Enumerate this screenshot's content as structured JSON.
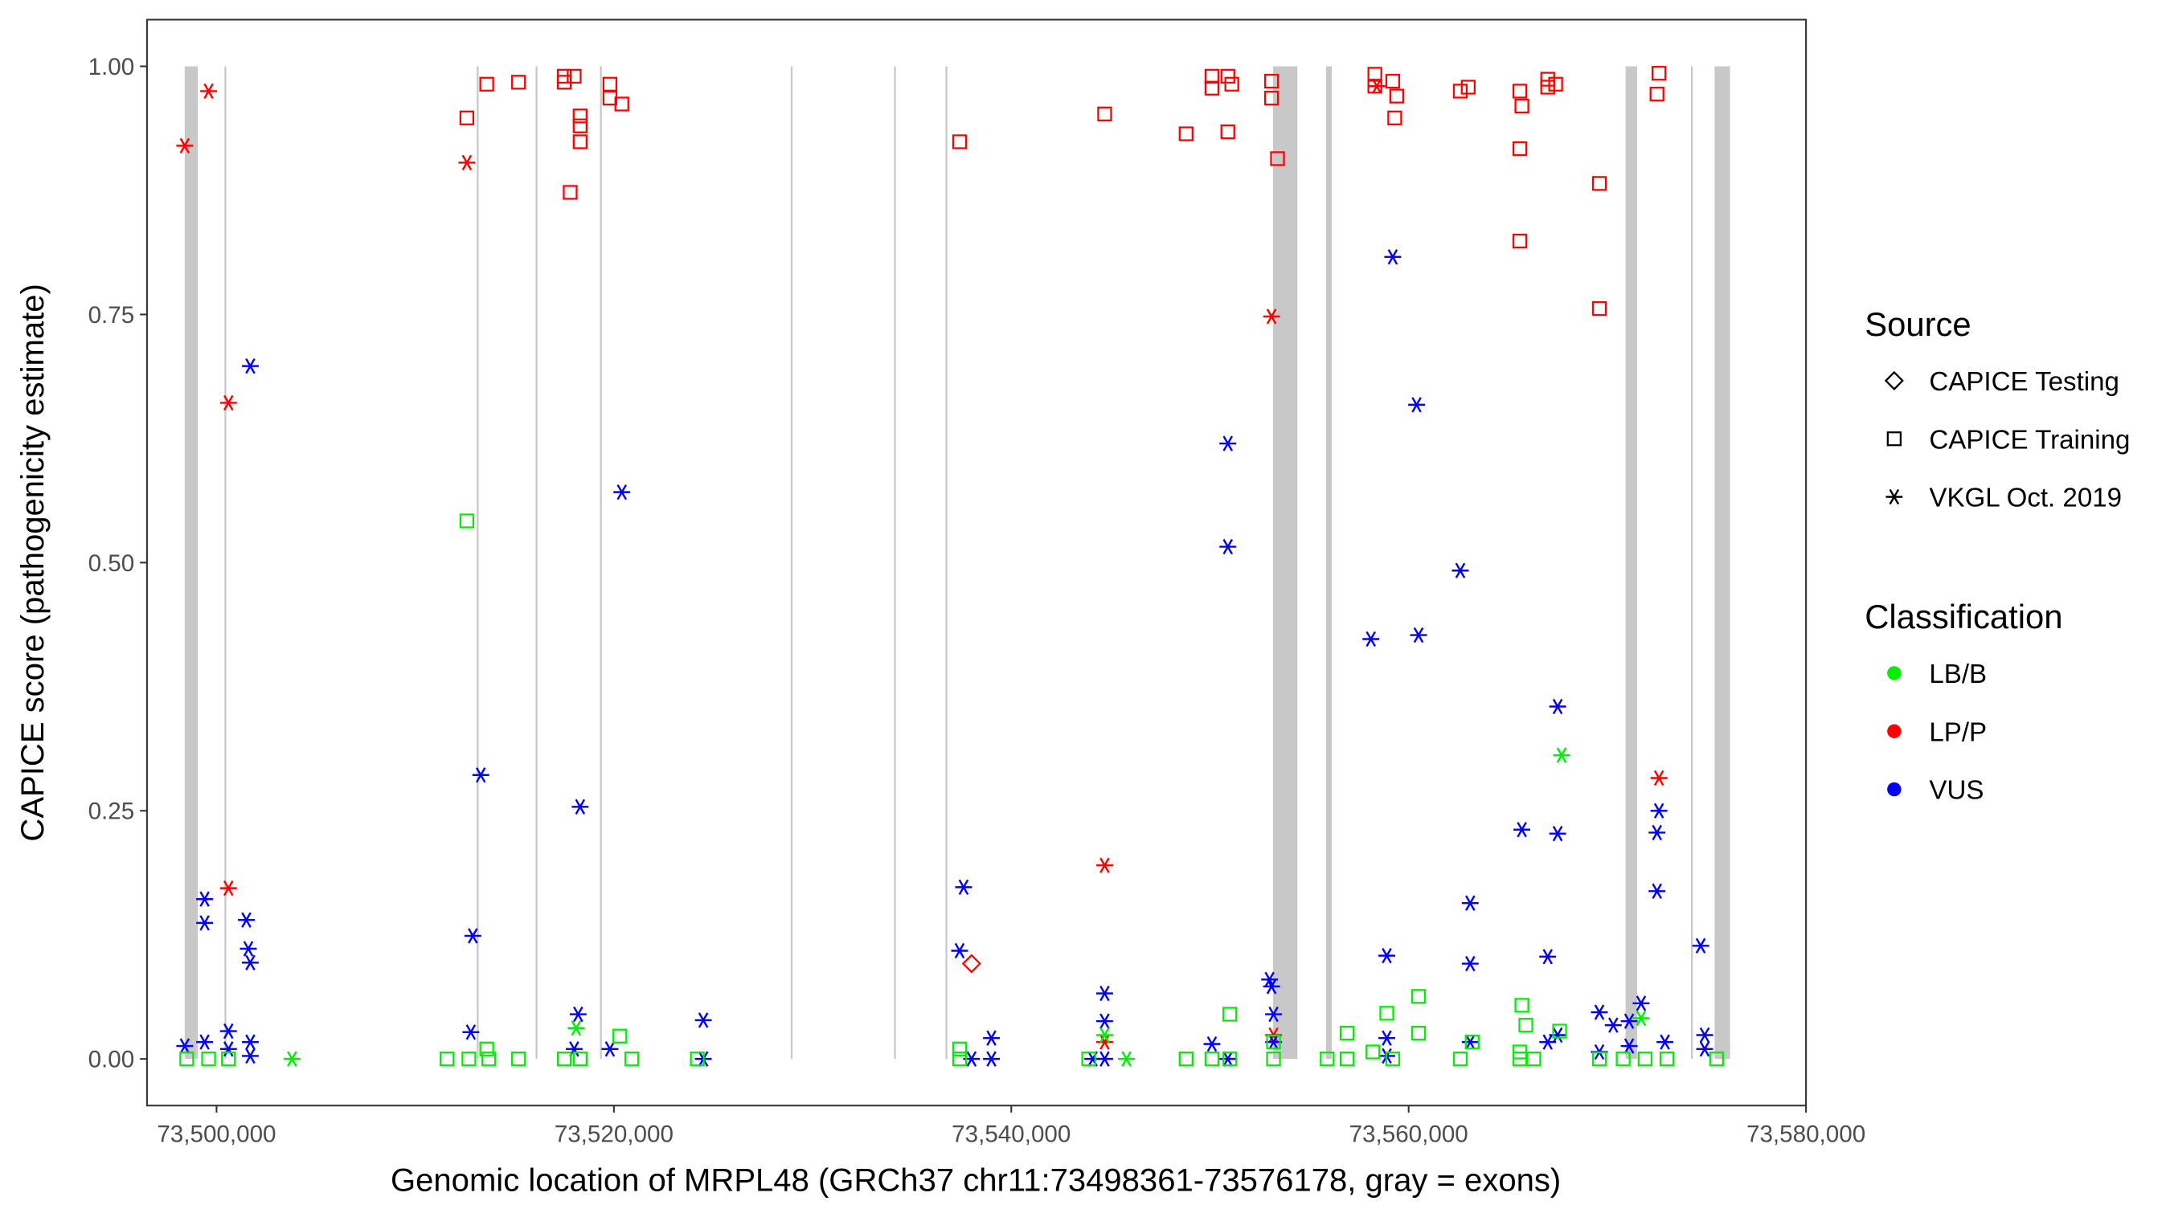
{
  "chart_data": {
    "type": "scatter",
    "xlabel": "Genomic location of MRPL48 (GRCh37 chr11:73498361-73576178, gray = exons)",
    "ylabel": "CAPICE score (pathogenicity estimate)",
    "xlim": [
      73496500,
      73580000
    ],
    "ylim": [
      -0.047,
      1.047
    ],
    "x_ticks": [
      73500000,
      73520000,
      73540000,
      73560000,
      73580000
    ],
    "x_tick_labels": [
      "73,500,000",
      "73,520,000",
      "73,540,000",
      "73,560,000",
      "73,580,000"
    ],
    "y_ticks": [
      0,
      0.25,
      0.5,
      0.75,
      1.0
    ],
    "y_tick_labels": [
      "0.00",
      "0.25",
      "0.50",
      "0.75",
      "1.00"
    ],
    "grid": false,
    "legend_placement": "right",
    "legend": {
      "source_title": "Source",
      "sources": [
        {
          "code": "T",
          "label": "CAPICE Testing",
          "shape": "diamond"
        },
        {
          "code": "R",
          "label": "CAPICE Training",
          "shape": "square"
        },
        {
          "code": "V",
          "label": "VKGL Oct. 2019",
          "shape": "asterisk"
        }
      ],
      "class_title": "Classification",
      "classes": [
        {
          "label": "LB/B",
          "color": "#00ee00"
        },
        {
          "label": "LP/P",
          "color": "#ff0000"
        },
        {
          "label": "VUS",
          "color": "#0000ff"
        }
      ]
    },
    "exons": [
      [
        73498400,
        73499060
      ],
      [
        73500400,
        73500470
      ],
      [
        73513100,
        73513170
      ],
      [
        73516060,
        73516130
      ],
      [
        73519300,
        73519370
      ],
      [
        73528900,
        73528970
      ],
      [
        73534100,
        73534170
      ],
      [
        73536690,
        73536760
      ],
      [
        73553175,
        73554400
      ],
      [
        73555840,
        73556130
      ],
      [
        73570920,
        73571500
      ],
      [
        73574210,
        73574280
      ],
      [
        73575400,
        73576178
      ]
    ],
    "points": [
      [
        73498400,
        0.92,
        "V",
        "LP/P"
      ],
      [
        73499600,
        0.975,
        "V",
        "LP/P"
      ],
      [
        73512600,
        0.903,
        "V",
        "LP/P"
      ],
      [
        73500600,
        0.661,
        "V",
        "LP/P"
      ],
      [
        73500600,
        0.172,
        "V",
        "LP/P"
      ],
      [
        73512600,
        0.948,
        "R",
        "LP/P"
      ],
      [
        73513600,
        0.982,
        "R",
        "LP/P"
      ],
      [
        73515200,
        0.984,
        "R",
        "LP/P"
      ],
      [
        73517500,
        0.984,
        "R",
        "LP/P"
      ],
      [
        73517500,
        0.99,
        "R",
        "LP/P"
      ],
      [
        73518000,
        0.99,
        "R",
        "LP/P"
      ],
      [
        73518300,
        0.95,
        "R",
        "LP/P"
      ],
      [
        73518300,
        0.94,
        "R",
        "LP/P"
      ],
      [
        73518300,
        0.924,
        "R",
        "LP/P"
      ],
      [
        73517800,
        0.873,
        "R",
        "LP/P"
      ],
      [
        73519800,
        0.982,
        "R",
        "LP/P"
      ],
      [
        73519800,
        0.968,
        "R",
        "LP/P"
      ],
      [
        73520400,
        0.962,
        "R",
        "LP/P"
      ],
      [
        73537400,
        0.924,
        "R",
        "LP/P"
      ],
      [
        73544700,
        0.952,
        "R",
        "LP/P"
      ],
      [
        73548800,
        0.932,
        "R",
        "LP/P"
      ],
      [
        73550100,
        0.99,
        "R",
        "LP/P"
      ],
      [
        73550100,
        0.978,
        "R",
        "LP/P"
      ],
      [
        73550900,
        0.99,
        "R",
        "LP/P"
      ],
      [
        73551100,
        0.982,
        "R",
        "LP/P"
      ],
      [
        73550900,
        0.934,
        "R",
        "LP/P"
      ],
      [
        73553100,
        0.985,
        "R",
        "LP/P"
      ],
      [
        73553100,
        0.968,
        "R",
        "LP/P"
      ],
      [
        73553400,
        0.907,
        "R",
        "LP/P"
      ],
      [
        73558300,
        0.992,
        "R",
        "LP/P"
      ],
      [
        73558300,
        0.98,
        "R",
        "LP/P"
      ],
      [
        73559200,
        0.985,
        "R",
        "LP/P"
      ],
      [
        73559400,
        0.97,
        "R",
        "LP/P"
      ],
      [
        73559300,
        0.948,
        "R",
        "LP/P"
      ],
      [
        73562600,
        0.975,
        "R",
        "LP/P"
      ],
      [
        73563000,
        0.979,
        "R",
        "LP/P"
      ],
      [
        73565600,
        0.975,
        "R",
        "LP/P"
      ],
      [
        73565700,
        0.96,
        "R",
        "LP/P"
      ],
      [
        73565600,
        0.917,
        "R",
        "LP/P"
      ],
      [
        73565600,
        0.824,
        "R",
        "LP/P"
      ],
      [
        73567000,
        0.987,
        "R",
        "LP/P"
      ],
      [
        73567000,
        0.979,
        "R",
        "LP/P"
      ],
      [
        73567400,
        0.982,
        "R",
        "LP/P"
      ],
      [
        73569600,
        0.882,
        "R",
        "LP/P"
      ],
      [
        73569600,
        0.756,
        "R",
        "LP/P"
      ],
      [
        73572600,
        0.993,
        "R",
        "LP/P"
      ],
      [
        73572500,
        0.972,
        "R",
        "LP/P"
      ],
      [
        73553100,
        0.748,
        "V",
        "LP/P"
      ],
      [
        73558400,
        0.98,
        "V",
        "LP/P"
      ],
      [
        73544700,
        0.195,
        "V",
        "LP/P"
      ],
      [
        73544700,
        0.017,
        "V",
        "LP/P"
      ],
      [
        73553200,
        0.024,
        "V",
        "LP/P"
      ],
      [
        73572600,
        0.283,
        "V",
        "LP/P"
      ],
      [
        73538000,
        0.096,
        "T",
        "LP/P"
      ],
      [
        73501700,
        0.698,
        "V",
        "VUS"
      ],
      [
        73499400,
        0.161,
        "V",
        "VUS"
      ],
      [
        73499400,
        0.137,
        "V",
        "VUS"
      ],
      [
        73498400,
        0.013,
        "V",
        "VUS"
      ],
      [
        73499400,
        0.017,
        "V",
        "VUS"
      ],
      [
        73500600,
        0.028,
        "V",
        "VUS"
      ],
      [
        73500600,
        0.01,
        "V",
        "VUS"
      ],
      [
        73501500,
        0.14,
        "V",
        "VUS"
      ],
      [
        73501600,
        0.111,
        "V",
        "VUS"
      ],
      [
        73501700,
        0.097,
        "V",
        "VUS"
      ],
      [
        73501700,
        0.017,
        "V",
        "VUS"
      ],
      [
        73501700,
        0.003,
        "V",
        "VUS"
      ],
      [
        73513300,
        0.286,
        "V",
        "VUS"
      ],
      [
        73512900,
        0.124,
        "V",
        "VUS"
      ],
      [
        73512800,
        0.027,
        "V",
        "VUS"
      ],
      [
        73518300,
        0.254,
        "V",
        "VUS"
      ],
      [
        73520400,
        0.571,
        "V",
        "VUS"
      ],
      [
        73518200,
        0.045,
        "V",
        "VUS"
      ],
      [
        73518000,
        0.01,
        "V",
        "VUS"
      ],
      [
        73519800,
        0.01,
        "V",
        "VUS"
      ],
      [
        73524500,
        0.039,
        "V",
        "VUS"
      ],
      [
        73524500,
        0.0,
        "V",
        "VUS"
      ],
      [
        73537600,
        0.173,
        "V",
        "VUS"
      ],
      [
        73537400,
        0.109,
        "V",
        "VUS"
      ],
      [
        73539000,
        0.021,
        "V",
        "VUS"
      ],
      [
        73539000,
        0.0,
        "V",
        "VUS"
      ],
      [
        73538000,
        0.0,
        "V",
        "VUS"
      ],
      [
        73544700,
        0.066,
        "V",
        "VUS"
      ],
      [
        73544700,
        0.038,
        "V",
        "VUS"
      ],
      [
        73544700,
        0.0,
        "V",
        "VUS"
      ],
      [
        73544100,
        0.0,
        "V",
        "VUS"
      ],
      [
        73550100,
        0.015,
        "V",
        "VUS"
      ],
      [
        73550900,
        0.62,
        "V",
        "VUS"
      ],
      [
        73550900,
        0.516,
        "V",
        "VUS"
      ],
      [
        73550900,
        0.0,
        "V",
        "VUS"
      ],
      [
        73553000,
        0.08,
        "V",
        "VUS"
      ],
      [
        73553100,
        0.073,
        "V",
        "VUS"
      ],
      [
        73553200,
        0.045,
        "V",
        "VUS"
      ],
      [
        73553200,
        0.017,
        "V",
        "VUS"
      ],
      [
        73559200,
        0.808,
        "V",
        "VUS"
      ],
      [
        73560400,
        0.659,
        "V",
        "VUS"
      ],
      [
        73558100,
        0.423,
        "V",
        "VUS"
      ],
      [
        73560500,
        0.427,
        "V",
        "VUS"
      ],
      [
        73558900,
        0.104,
        "V",
        "VUS"
      ],
      [
        73558900,
        0.021,
        "V",
        "VUS"
      ],
      [
        73558900,
        0.003,
        "V",
        "VUS"
      ],
      [
        73562600,
        0.492,
        "V",
        "VUS"
      ],
      [
        73563100,
        0.157,
        "V",
        "VUS"
      ],
      [
        73563100,
        0.096,
        "V",
        "VUS"
      ],
      [
        73563100,
        0.017,
        "V",
        "VUS"
      ],
      [
        73565700,
        0.231,
        "V",
        "VUS"
      ],
      [
        73567500,
        0.355,
        "V",
        "VUS"
      ],
      [
        73567500,
        0.227,
        "V",
        "VUS"
      ],
      [
        73567000,
        0.103,
        "V",
        "VUS"
      ],
      [
        73567000,
        0.017,
        "V",
        "VUS"
      ],
      [
        73567500,
        0.024,
        "V",
        "VUS"
      ],
      [
        73569600,
        0.047,
        "V",
        "VUS"
      ],
      [
        73570300,
        0.034,
        "V",
        "VUS"
      ],
      [
        73571100,
        0.013,
        "V",
        "VUS"
      ],
      [
        73571700,
        0.056,
        "V",
        "VUS"
      ],
      [
        73572600,
        0.25,
        "V",
        "VUS"
      ],
      [
        73572500,
        0.228,
        "V",
        "VUS"
      ],
      [
        73572500,
        0.169,
        "V",
        "VUS"
      ],
      [
        73572900,
        0.017,
        "V",
        "VUS"
      ],
      [
        73574700,
        0.114,
        "V",
        "VUS"
      ],
      [
        73574900,
        0.024,
        "V",
        "VUS"
      ],
      [
        73574900,
        0.01,
        "V",
        "VUS"
      ],
      [
        73569600,
        0.007,
        "V",
        "VUS"
      ],
      [
        73571100,
        0.038,
        "V",
        "VUS"
      ],
      [
        73503800,
        0.0,
        "V",
        "LB/B"
      ],
      [
        73567700,
        0.306,
        "V",
        "LB/B"
      ],
      [
        73571700,
        0.041,
        "V",
        "LB/B"
      ],
      [
        73518100,
        0.031,
        "V",
        "LB/B"
      ],
      [
        73544700,
        0.024,
        "V",
        "LB/B"
      ],
      [
        73545800,
        0.0,
        "V",
        "LB/B"
      ],
      [
        73512600,
        0.542,
        "R",
        "LB/B"
      ],
      [
        73551000,
        0.045,
        "R",
        "LB/B"
      ],
      [
        73560500,
        0.063,
        "R",
        "LB/B"
      ],
      [
        73560500,
        0.026,
        "R",
        "LB/B"
      ],
      [
        73558900,
        0.046,
        "R",
        "LB/B"
      ],
      [
        73556900,
        0.026,
        "R",
        "LB/B"
      ],
      [
        73565700,
        0.054,
        "R",
        "LB/B"
      ],
      [
        73565900,
        0.034,
        "R",
        "LB/B"
      ],
      [
        73567600,
        0.028,
        "R",
        "LB/B"
      ],
      [
        73520300,
        0.023,
        "R",
        "LB/B"
      ],
      [
        73563200,
        0.017,
        "R",
        "LB/B"
      ],
      [
        73565600,
        0.007,
        "R",
        "LB/B"
      ],
      [
        73498500,
        0.0,
        "R",
        "LB/B"
      ],
      [
        73499600,
        0.0,
        "R",
        "LB/B"
      ],
      [
        73500600,
        0.0,
        "R",
        "LB/B"
      ],
      [
        73511600,
        0.0,
        "R",
        "LB/B"
      ],
      [
        73512700,
        0.0,
        "R",
        "LB/B"
      ],
      [
        73513600,
        0.01,
        "R",
        "LB/B"
      ],
      [
        73513700,
        0.0,
        "R",
        "LB/B"
      ],
      [
        73515200,
        0.0,
        "R",
        "LB/B"
      ],
      [
        73517500,
        0.0,
        "R",
        "LB/B"
      ],
      [
        73518300,
        0.0,
        "R",
        "LB/B"
      ],
      [
        73520900,
        0.0,
        "R",
        "LB/B"
      ],
      [
        73524200,
        0.0,
        "R",
        "LB/B"
      ],
      [
        73537400,
        0.01,
        "R",
        "LB/B"
      ],
      [
        73537400,
        0.0,
        "R",
        "LB/B"
      ],
      [
        73543900,
        0.0,
        "R",
        "LB/B"
      ],
      [
        73548800,
        0.0,
        "R",
        "LB/B"
      ],
      [
        73550100,
        0.0,
        "R",
        "LB/B"
      ],
      [
        73551000,
        0.0,
        "R",
        "LB/B"
      ],
      [
        73553200,
        0.0,
        "R",
        "LB/B"
      ],
      [
        73553200,
        0.017,
        "R",
        "LB/B"
      ],
      [
        73555900,
        0.0,
        "R",
        "LB/B"
      ],
      [
        73556900,
        0.0,
        "R",
        "LB/B"
      ],
      [
        73558200,
        0.007,
        "R",
        "LB/B"
      ],
      [
        73559200,
        0.0,
        "R",
        "LB/B"
      ],
      [
        73562600,
        0.0,
        "R",
        "LB/B"
      ],
      [
        73565600,
        0.0,
        "R",
        "LB/B"
      ],
      [
        73566300,
        0.0,
        "R",
        "LB/B"
      ],
      [
        73569600,
        0.0,
        "R",
        "LB/B"
      ],
      [
        73570800,
        0.0,
        "R",
        "LB/B"
      ],
      [
        73571900,
        0.0,
        "R",
        "LB/B"
      ],
      [
        73573000,
        0.0,
        "R",
        "LB/B"
      ],
      [
        73575500,
        0.0,
        "R",
        "LB/B"
      ]
    ]
  }
}
